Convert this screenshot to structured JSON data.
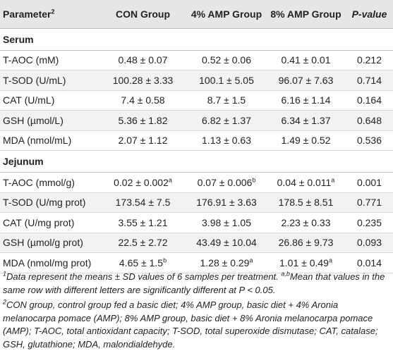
{
  "table": {
    "headers": {
      "parameter": "Parameter",
      "parameter_sup": "2",
      "con": "CON Group",
      "amp4": "4% AMP Group",
      "amp8": "8% AMP Group",
      "pvalue": "P-value"
    },
    "sections": [
      {
        "title": "Serum",
        "rows": [
          {
            "label": "T-AOC (mM)",
            "con": "0.48 ± 0.07",
            "con_sup": "",
            "amp4": "0.52 ± 0.06",
            "amp4_sup": "",
            "amp8": "0.41 ± 0.01",
            "amp8_sup": "",
            "p": "0.212"
          },
          {
            "label": "T-SOD (U/mL)",
            "con": "100.28 ± 3.33",
            "con_sup": "",
            "amp4": "100.1 ± 5.05",
            "amp4_sup": "",
            "amp8": "96.07 ± 7.63",
            "amp8_sup": "",
            "p": "0.714"
          },
          {
            "label": "CAT (U/mL)",
            "con": "7.4 ± 0.58",
            "con_sup": "",
            "amp4": "8.7 ± 1.5",
            "amp4_sup": "",
            "amp8": "6.16 ± 1.14",
            "amp8_sup": "",
            "p": "0.164"
          },
          {
            "label": "GSH (µmol/L)",
            "con": "5.36 ± 1.82",
            "con_sup": "",
            "amp4": "6.82 ± 1.37",
            "amp4_sup": "",
            "amp8": "6.34 ± 1.37",
            "amp8_sup": "",
            "p": "0.648"
          },
          {
            "label": "MDA (nmol/mL)",
            "con": "2.07 ± 1.12",
            "con_sup": "",
            "amp4": "1.13 ± 0.63",
            "amp4_sup": "",
            "amp8": "1.49 ± 0.52",
            "amp8_sup": "",
            "p": "0.536"
          }
        ]
      },
      {
        "title": "Jejunum",
        "rows": [
          {
            "label": "T-AOC (mmol/g)",
            "con": "0.02 ± 0.002",
            "con_sup": "a",
            "amp4": "0.07 ± 0.006",
            "amp4_sup": "b",
            "amp8": "0.04 ± 0.011",
            "amp8_sup": "a",
            "p": "0.001"
          },
          {
            "label": "T-SOD (U/mg prot)",
            "con": "173.54 ± 7.5",
            "con_sup": "",
            "amp4": "176.91 ± 3.63",
            "amp4_sup": "",
            "amp8": "178.5 ± 8.51",
            "amp8_sup": "",
            "p": "0.771"
          },
          {
            "label": "CAT (U/mg prot)",
            "con": "3.55 ± 1.21",
            "con_sup": "",
            "amp4": "3.98 ± 1.05",
            "amp4_sup": "",
            "amp8": "2.23 ± 0.33",
            "amp8_sup": "",
            "p": "0.235"
          },
          {
            "label": "GSH (µmol/g prot)",
            "con": "22.5 ± 2.72",
            "con_sup": "",
            "amp4": "43.49 ± 10.04",
            "amp4_sup": "",
            "amp8": "26.86 ± 9.73",
            "amp8_sup": "",
            "p": "0.093"
          },
          {
            "label": "MDA (nmol/mg prot)",
            "con": "4.65 ± 1.5",
            "con_sup": "b",
            "amp4": "1.28 ± 0.29",
            "amp4_sup": "a",
            "amp8": "1.01 ± 0.49",
            "amp8_sup": "a",
            "p": "0.014"
          }
        ]
      }
    ]
  },
  "footnotes": {
    "note1_sup": "1",
    "note1_text": "Data represent the means ± SD values of 6 samples per treatment. ",
    "note1_sup2": "a,b",
    "note1_text2": "Mean that values in the same row with different letters are significantly different at ",
    "note1_stat": "P < 0.05",
    "note1_end": ".",
    "note2_sup": "2",
    "note2_text": "CON group, control group fed a basic diet; 4% AMP group, basic diet + 4% Aronia melanocarpa pomace (AMP); 8% AMP group, basic diet + 8% Aronia melanocarpa pomace (AMP); T-AOC, total antioxidant capacity; T-SOD, total superoxide dismutase; CAT, catalase; GSH, glutathione; MDA, malondialdehyde."
  }
}
